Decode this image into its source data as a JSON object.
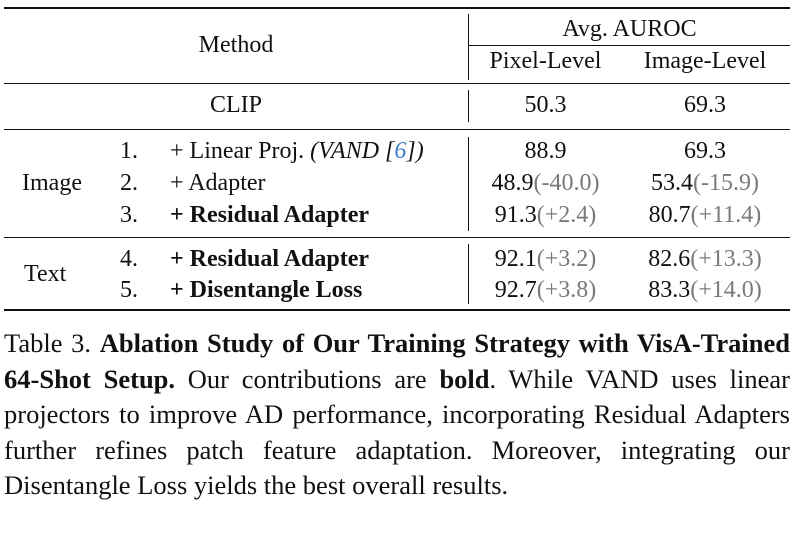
{
  "table": {
    "header": {
      "method": "Method",
      "avg_auroc": "Avg. AUROC",
      "pixel_level": "Pixel-Level",
      "image_level": "Image-Level"
    },
    "baseline": {
      "name": "CLIP",
      "pixel": "50.3",
      "image": "69.3"
    },
    "groups": [
      {
        "label": "Image",
        "rows": [
          {
            "num": "1.",
            "method": "+ Linear Proj.",
            "method_note_pre": "(VAND [",
            "method_cite": "6",
            "method_note_post": "])",
            "pixel": "88.9",
            "pixel_delta": "",
            "image": "69.3",
            "image_delta": ""
          },
          {
            "num": "2.",
            "method": "+ Adapter",
            "pixel": "48.9",
            "pixel_delta": "(-40.0)",
            "image": "53.4",
            "image_delta": "(-15.9)"
          },
          {
            "num": "3.",
            "method": "+ Residual Adapter",
            "pixel": "91.3",
            "pixel_delta": "(+2.4)",
            "image": "80.7",
            "image_delta": "(+11.4)"
          }
        ]
      },
      {
        "label": "Text",
        "rows": [
          {
            "num": "4.",
            "method": "+ Residual Adapter",
            "pixel": "92.1",
            "pixel_delta": "(+3.2)",
            "image": "82.6",
            "image_delta": "(+13.3)"
          },
          {
            "num": "5.",
            "method": "+ Disentangle Loss",
            "pixel": "92.7",
            "pixel_delta": "(+3.8)",
            "image": "83.3",
            "image_delta": "(+14.0)"
          }
        ]
      }
    ]
  },
  "caption": {
    "label": "Table 3.",
    "title": "Ablation Study of Our Training Strategy with VisA-Trained 64-Shot Setup.",
    "text_1": "Our contributions are",
    "bold_word": "bold",
    "text_2": ". While VAND uses linear projectors to improve AD performance, incorporating Residual Adapters further refines patch feature adaptation. Moreover, integrating our Disentangle Loss yields the best overall results."
  }
}
